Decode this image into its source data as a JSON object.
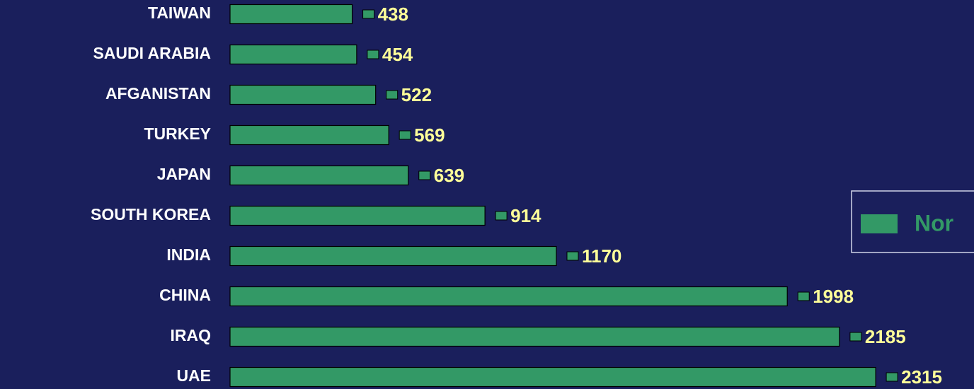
{
  "chart_data": {
    "type": "bar",
    "orientation": "horizontal",
    "categories": [
      "TAIWAN",
      "SAUDI ARABIA",
      "AFGANISTAN",
      "TURKEY",
      "JAPAN",
      "SOUTH KOREA",
      "INDIA",
      "CHINA",
      "IRAQ",
      "UAE"
    ],
    "series": [
      {
        "name": "Nor",
        "color": "#339966",
        "values": [
          438,
          454,
          522,
          569,
          639,
          914,
          1170,
          1998,
          2185,
          2315
        ]
      }
    ],
    "legend": "right"
  }
}
